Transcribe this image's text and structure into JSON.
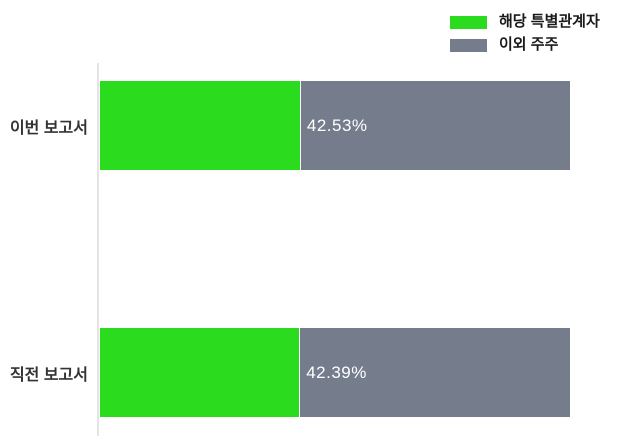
{
  "chart_data": {
    "type": "bar",
    "orientation": "horizontal",
    "stacked": true,
    "title": "",
    "xlabel": "",
    "ylabel": "",
    "categories": [
      "이번 보고서",
      "직전 보고서"
    ],
    "series": [
      {
        "name": "해당 특별관계자",
        "color": "#2bdc1e",
        "values": [
          42.53,
          42.39
        ]
      },
      {
        "name": "이외 주주",
        "color": "#757d8d",
        "values": [
          57.47,
          57.61
        ]
      }
    ],
    "value_labels": [
      "42.53%",
      "42.39%"
    ],
    "xlim": [
      0,
      100
    ],
    "grid": false,
    "legend_position": "top-right"
  },
  "legend": {
    "items": [
      {
        "label": "해당 특별관계자",
        "color": "#2bdc1e"
      },
      {
        "label": "이외 주주",
        "color": "#757d8d"
      }
    ]
  },
  "rows": [
    {
      "category": "이번 보고서",
      "value_label": "42.53%",
      "green_pct": 42.53
    },
    {
      "category": "직전 보고서",
      "value_label": "42.39%",
      "green_pct": 42.39
    }
  ],
  "colors": {
    "green": "#2bdc1e",
    "gray": "#757d8d",
    "axis_line": "#e4e4e4",
    "category_text": "#333333",
    "value_text": "#ffffff"
  }
}
